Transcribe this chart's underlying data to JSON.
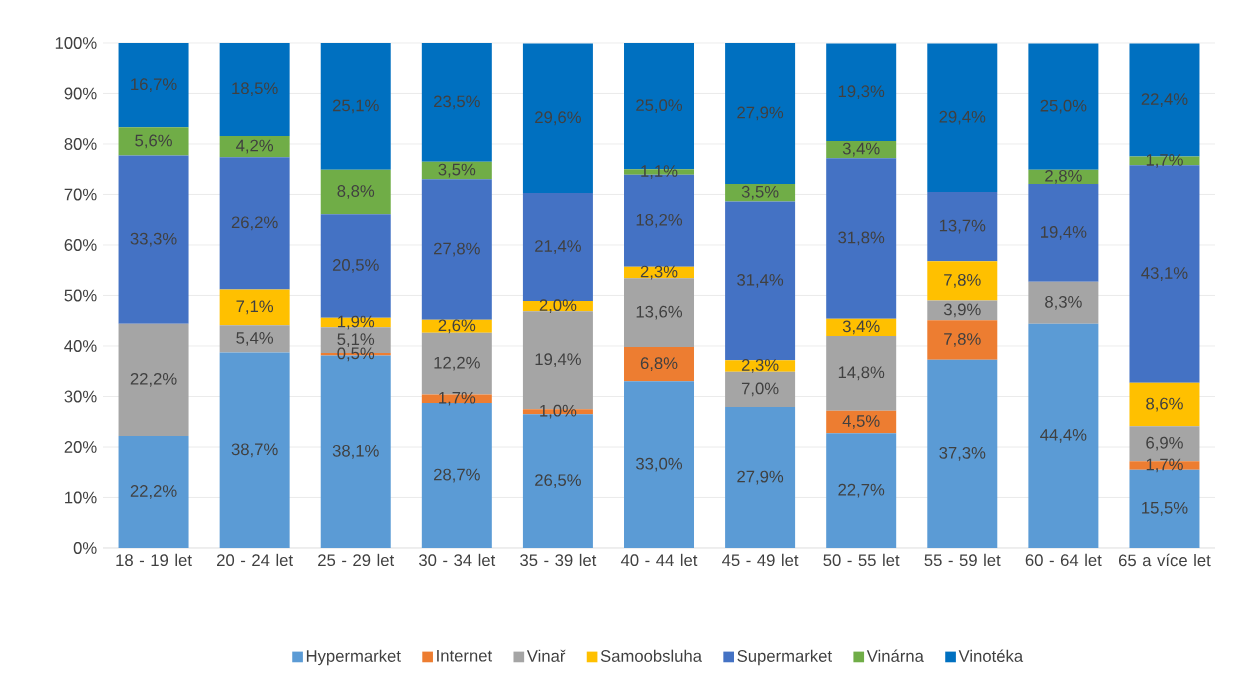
{
  "chart_data": {
    "type": "bar",
    "stacked": true,
    "categories": [
      "18 - 19 let",
      "20 - 24 let",
      "25 - 29 let",
      "30 - 34 let",
      "35 - 39 let",
      "40 - 44 let",
      "45 - 49 let",
      "50 - 55 let",
      "55 - 59 let",
      "60 - 64 let",
      "65 a více let"
    ],
    "series": [
      {
        "name": "Hypermarket",
        "color": "#5b9bd5",
        "values": [
          22.2,
          38.7,
          38.1,
          28.7,
          26.5,
          33.0,
          27.9,
          22.7,
          37.3,
          44.4,
          15.5
        ],
        "value_labels": [
          "22,2%",
          "38,7%",
          "38,1%",
          "28,7%",
          "26,5%",
          "33,0%",
          "27,9%",
          "22,7%",
          "37,3%",
          "44,4%",
          "15,5%"
        ]
      },
      {
        "name": "Internet",
        "color": "#ed7d31",
        "values": [
          0,
          0,
          0.5,
          1.7,
          1.0,
          6.8,
          0,
          4.5,
          7.8,
          0,
          1.7
        ],
        "value_labels": [
          null,
          null,
          "0,5%",
          "1,7%",
          "1,0%",
          "6,8%",
          null,
          "4,5%",
          "7,8%",
          null,
          "1,7%"
        ]
      },
      {
        "name": "Vinař",
        "color": "#a5a5a5",
        "values": [
          22.2,
          5.4,
          5.1,
          12.2,
          19.4,
          13.6,
          7.0,
          14.8,
          3.9,
          8.3,
          6.9
        ],
        "value_labels": [
          "22,2%",
          "5,4%",
          "5,1%",
          "12,2%",
          "19,4%",
          "13,6%",
          "7,0%",
          "14,8%",
          "3,9%",
          "8,3%",
          "6,9%"
        ]
      },
      {
        "name": "Samoobsluha",
        "color": "#ffc000",
        "values": [
          0,
          7.1,
          1.9,
          2.6,
          2.0,
          2.3,
          2.3,
          3.4,
          7.8,
          0,
          8.6
        ],
        "value_labels": [
          null,
          "7,1%",
          "1,9%",
          "2,6%",
          "2,0%",
          "2,3%",
          "2,3%",
          "3,4%",
          "7,8%",
          null,
          "8,6%"
        ]
      },
      {
        "name": "Supermarket",
        "color": "#4472c4",
        "values": [
          33.3,
          26.2,
          20.5,
          27.8,
          21.4,
          18.2,
          31.4,
          31.8,
          13.7,
          19.4,
          43.1
        ],
        "value_labels": [
          "33,3%",
          "26,2%",
          "20,5%",
          "27,8%",
          "21,4%",
          "18,2%",
          "31,4%",
          "31,8%",
          "13,7%",
          "19,4%",
          "43,1%"
        ]
      },
      {
        "name": "Vinárna",
        "color": "#70ad47",
        "values": [
          5.6,
          4.2,
          8.8,
          3.5,
          0,
          1.1,
          3.5,
          3.4,
          0,
          2.8,
          1.7
        ],
        "value_labels": [
          "5,6%",
          "4,2%",
          "8,8%",
          "3,5%",
          null,
          "1,1%",
          "3,5%",
          "3,4%",
          null,
          "2,8%",
          "1,7%"
        ]
      },
      {
        "name": "Vinotéka",
        "color": "#0070c0",
        "values": [
          16.7,
          18.5,
          25.1,
          23.5,
          29.6,
          25.0,
          27.9,
          19.3,
          29.4,
          25.0,
          22.4
        ],
        "value_labels": [
          "16,7%",
          "18,5%",
          "25,1%",
          "23,5%",
          "29,6%",
          "25,0%",
          "27,9%",
          "19,3%",
          "29,4%",
          "25,0%",
          "22,4%"
        ]
      }
    ],
    "ylim": [
      0,
      100
    ],
    "yticks": [
      {
        "value": 0,
        "label": "0%"
      },
      {
        "value": 10,
        "label": "10%"
      },
      {
        "value": 20,
        "label": "20%"
      },
      {
        "value": 30,
        "label": "30%"
      },
      {
        "value": 40,
        "label": "40%"
      },
      {
        "value": 50,
        "label": "50%"
      },
      {
        "value": 60,
        "label": "60%"
      },
      {
        "value": 70,
        "label": "70%"
      },
      {
        "value": 80,
        "label": "80%"
      },
      {
        "value": 90,
        "label": "90%"
      },
      {
        "value": 100,
        "label": "100%"
      }
    ],
    "grid": "y",
    "legend": "bottom"
  }
}
